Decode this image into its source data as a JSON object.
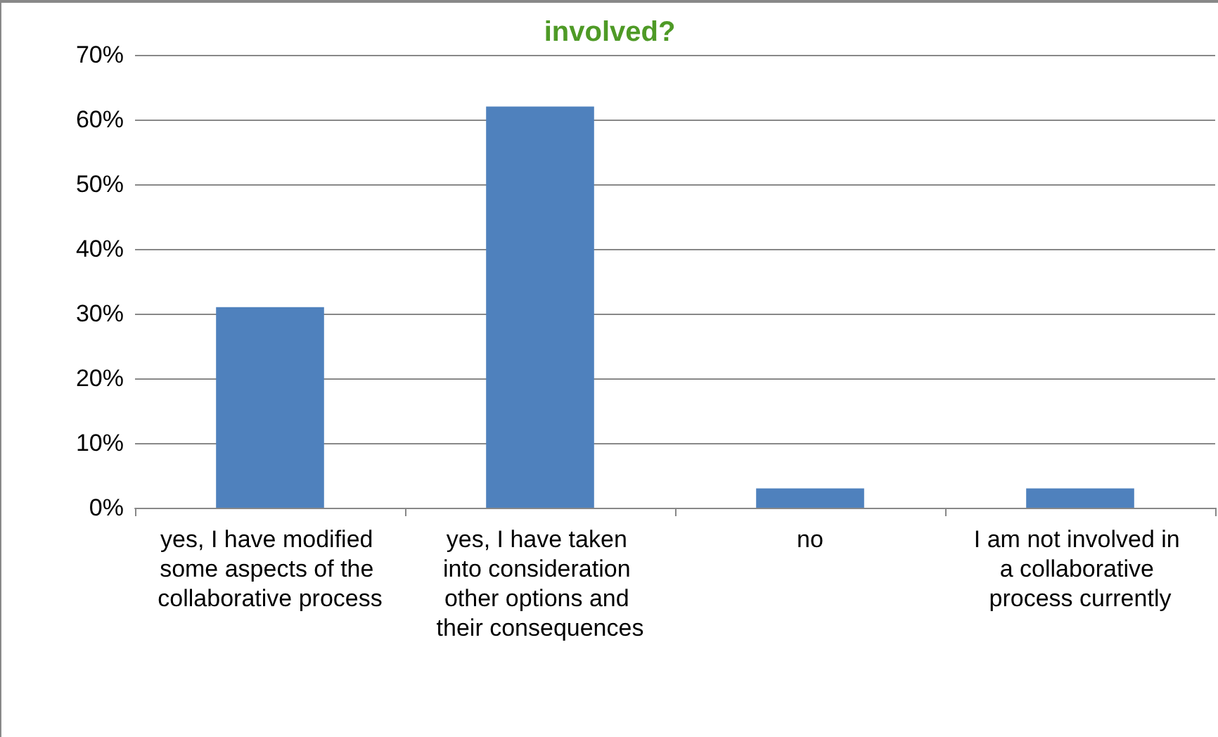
{
  "chart_data": {
    "type": "bar",
    "title": "involved?",
    "categories": [
      "yes, I have modified some aspects of the collaborative process",
      "yes, I have taken into consideration other options and their consequences",
      "no",
      "I am not involved in a collaborative process currently"
    ],
    "values": [
      31,
      62,
      3,
      3
    ],
    "color": "#4f81bd",
    "ylim": [
      0,
      70
    ],
    "yticks": [
      {
        "value": 0,
        "label": "0%"
      },
      {
        "value": 10,
        "label": "10%"
      },
      {
        "value": 20,
        "label": "20%"
      },
      {
        "value": 30,
        "label": "30%"
      },
      {
        "value": 40,
        "label": "40%"
      },
      {
        "value": 50,
        "label": "50%"
      },
      {
        "value": 60,
        "label": "60%"
      },
      {
        "value": 70,
        "label": "70%"
      }
    ],
    "grid": "y"
  }
}
